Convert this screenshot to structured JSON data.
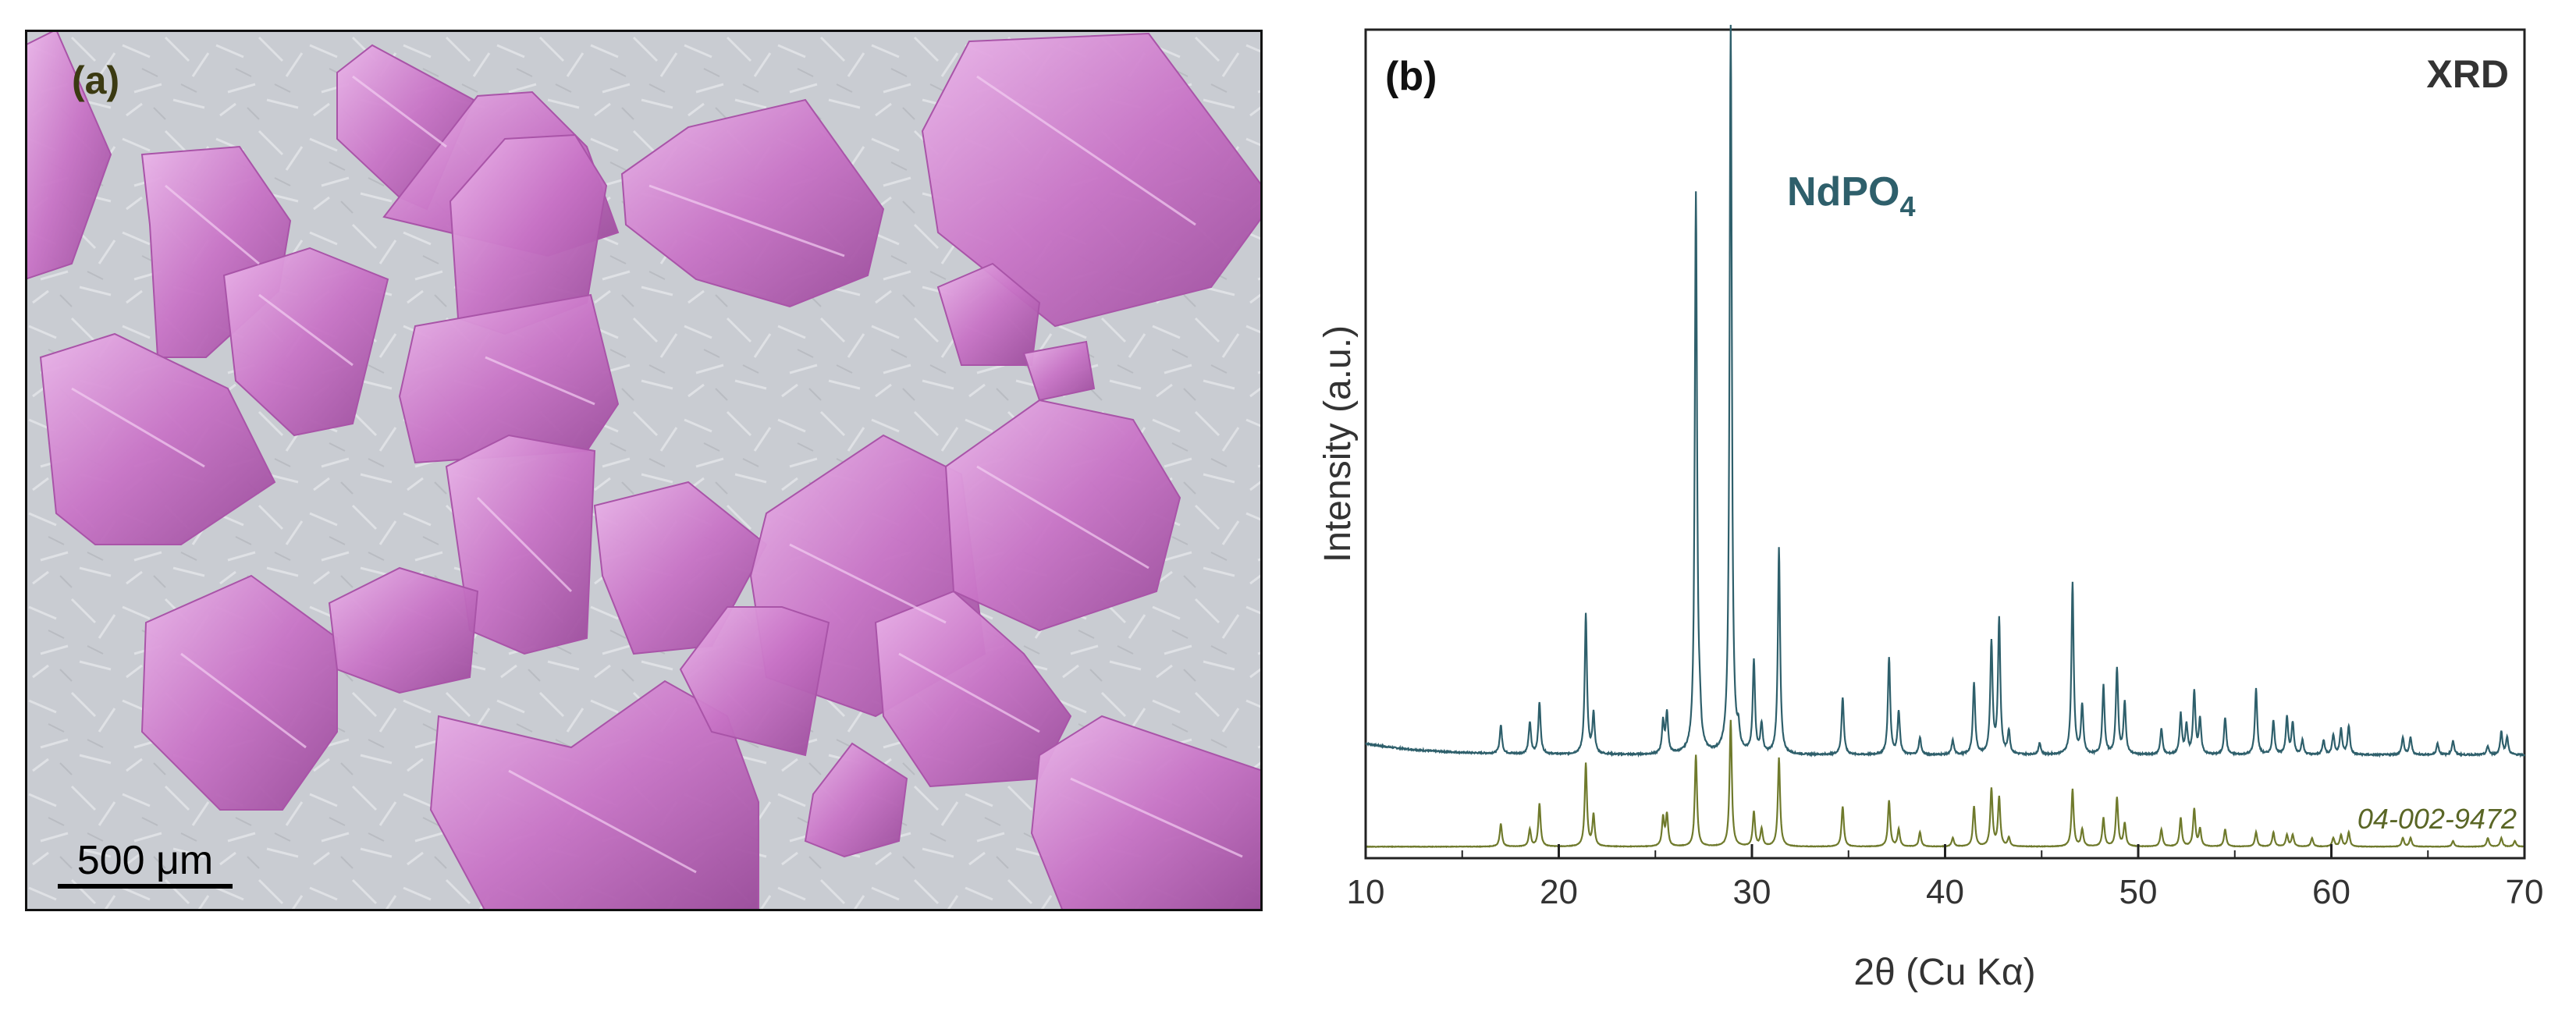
{
  "panel_a": {
    "label": "(a)",
    "scale_bar_label": "500 μm",
    "colors": {
      "background": "#c9ccd2",
      "crystal_fill": "#c873c6",
      "crystal_highlight": "#ebb6ea",
      "crystal_shadow": "#8a3f8a",
      "label_color": "#3b3a12"
    }
  },
  "panel_b": {
    "label": "(b)",
    "technique": "XRD",
    "sample_label": "NdPO",
    "sample_label_sub": "4",
    "reference_label": "04-002-9472",
    "colors": {
      "measured": "#2e5f6b",
      "reference": "#6f7a2c",
      "sample_label_color": "#2e5f6b",
      "reference_label_color": "#5a6626"
    }
  },
  "chart_data": {
    "type": "line",
    "xlabel": "2θ (Cu Kα)",
    "ylabel": "Intensity (a.u.)",
    "xlim": [
      10,
      70
    ],
    "x_ticks": [
      10,
      20,
      30,
      40,
      50,
      60,
      70
    ],
    "grid": false,
    "series": [
      {
        "name": "NdPO4",
        "role": "measured",
        "baseline": 0.055,
        "background_start": 0.075,
        "peaks": [
          {
            "x": 17.0,
            "h": 0.05
          },
          {
            "x": 18.5,
            "h": 0.055
          },
          {
            "x": 19.0,
            "h": 0.09
          },
          {
            "x": 21.4,
            "h": 0.245
          },
          {
            "x": 21.8,
            "h": 0.07
          },
          {
            "x": 25.4,
            "h": 0.055
          },
          {
            "x": 25.6,
            "h": 0.07
          },
          {
            "x": 27.1,
            "h": 0.975
          },
          {
            "x": 27.3,
            "h": 0.04
          },
          {
            "x": 28.9,
            "h": 1.27
          },
          {
            "x": 29.3,
            "h": 0.03
          },
          {
            "x": 30.1,
            "h": 0.16
          },
          {
            "x": 30.5,
            "h": 0.05
          },
          {
            "x": 31.4,
            "h": 0.36
          },
          {
            "x": 34.7,
            "h": 0.1
          },
          {
            "x": 37.1,
            "h": 0.17
          },
          {
            "x": 37.6,
            "h": 0.075
          },
          {
            "x": 38.7,
            "h": 0.03
          },
          {
            "x": 40.4,
            "h": 0.025
          },
          {
            "x": 41.5,
            "h": 0.125
          },
          {
            "x": 42.4,
            "h": 0.195
          },
          {
            "x": 42.8,
            "h": 0.235
          },
          {
            "x": 43.3,
            "h": 0.04
          },
          {
            "x": 44.9,
            "h": 0.02
          },
          {
            "x": 46.6,
            "h": 0.3
          },
          {
            "x": 47.1,
            "h": 0.085
          },
          {
            "x": 48.2,
            "h": 0.12
          },
          {
            "x": 48.9,
            "h": 0.15
          },
          {
            "x": 49.3,
            "h": 0.09
          },
          {
            "x": 51.2,
            "h": 0.045
          },
          {
            "x": 52.2,
            "h": 0.07
          },
          {
            "x": 52.5,
            "h": 0.05
          },
          {
            "x": 52.9,
            "h": 0.11
          },
          {
            "x": 53.2,
            "h": 0.06
          },
          {
            "x": 54.5,
            "h": 0.065
          },
          {
            "x": 56.1,
            "h": 0.115
          },
          {
            "x": 57.0,
            "h": 0.06
          },
          {
            "x": 57.7,
            "h": 0.065
          },
          {
            "x": 58.0,
            "h": 0.055
          },
          {
            "x": 58.5,
            "h": 0.025
          },
          {
            "x": 59.6,
            "h": 0.025
          },
          {
            "x": 60.1,
            "h": 0.035
          },
          {
            "x": 60.5,
            "h": 0.045
          },
          {
            "x": 60.9,
            "h": 0.05
          },
          {
            "x": 63.7,
            "h": 0.03
          },
          {
            "x": 64.1,
            "h": 0.03
          },
          {
            "x": 65.5,
            "h": 0.02
          },
          {
            "x": 66.3,
            "h": 0.025
          },
          {
            "x": 68.1,
            "h": 0.015
          },
          {
            "x": 68.8,
            "h": 0.04
          },
          {
            "x": 69.1,
            "h": 0.03
          }
        ]
      },
      {
        "name": "04-002-9472",
        "role": "reference",
        "baseline": -0.105,
        "peaks": [
          {
            "x": 17.0,
            "h": 0.04
          },
          {
            "x": 18.5,
            "h": 0.03
          },
          {
            "x": 19.0,
            "h": 0.075
          },
          {
            "x": 21.4,
            "h": 0.145
          },
          {
            "x": 21.8,
            "h": 0.055
          },
          {
            "x": 25.4,
            "h": 0.05
          },
          {
            "x": 25.6,
            "h": 0.055
          },
          {
            "x": 27.1,
            "h": 0.16
          },
          {
            "x": 28.9,
            "h": 0.22
          },
          {
            "x": 30.1,
            "h": 0.06
          },
          {
            "x": 30.5,
            "h": 0.03
          },
          {
            "x": 31.4,
            "h": 0.155
          },
          {
            "x": 34.7,
            "h": 0.07
          },
          {
            "x": 37.1,
            "h": 0.08
          },
          {
            "x": 37.6,
            "h": 0.03
          },
          {
            "x": 38.7,
            "h": 0.025
          },
          {
            "x": 40.4,
            "h": 0.015
          },
          {
            "x": 41.5,
            "h": 0.07
          },
          {
            "x": 42.4,
            "h": 0.1
          },
          {
            "x": 42.8,
            "h": 0.085
          },
          {
            "x": 43.3,
            "h": 0.015
          },
          {
            "x": 46.6,
            "h": 0.1
          },
          {
            "x": 47.1,
            "h": 0.03
          },
          {
            "x": 48.2,
            "h": 0.05
          },
          {
            "x": 48.9,
            "h": 0.085
          },
          {
            "x": 49.3,
            "h": 0.04
          },
          {
            "x": 51.2,
            "h": 0.03
          },
          {
            "x": 52.2,
            "h": 0.05
          },
          {
            "x": 52.9,
            "h": 0.065
          },
          {
            "x": 53.2,
            "h": 0.03
          },
          {
            "x": 54.5,
            "h": 0.03
          },
          {
            "x": 56.1,
            "h": 0.025
          },
          {
            "x": 57.0,
            "h": 0.025
          },
          {
            "x": 57.7,
            "h": 0.02
          },
          {
            "x": 58.0,
            "h": 0.02
          },
          {
            "x": 59.0,
            "h": 0.015
          },
          {
            "x": 60.1,
            "h": 0.015
          },
          {
            "x": 60.5,
            "h": 0.02
          },
          {
            "x": 60.9,
            "h": 0.025
          },
          {
            "x": 63.7,
            "h": 0.015
          },
          {
            "x": 64.1,
            "h": 0.015
          },
          {
            "x": 66.3,
            "h": 0.01
          },
          {
            "x": 68.1,
            "h": 0.015
          },
          {
            "x": 68.8,
            "h": 0.015
          },
          {
            "x": 69.5,
            "h": 0.01
          }
        ]
      }
    ]
  }
}
